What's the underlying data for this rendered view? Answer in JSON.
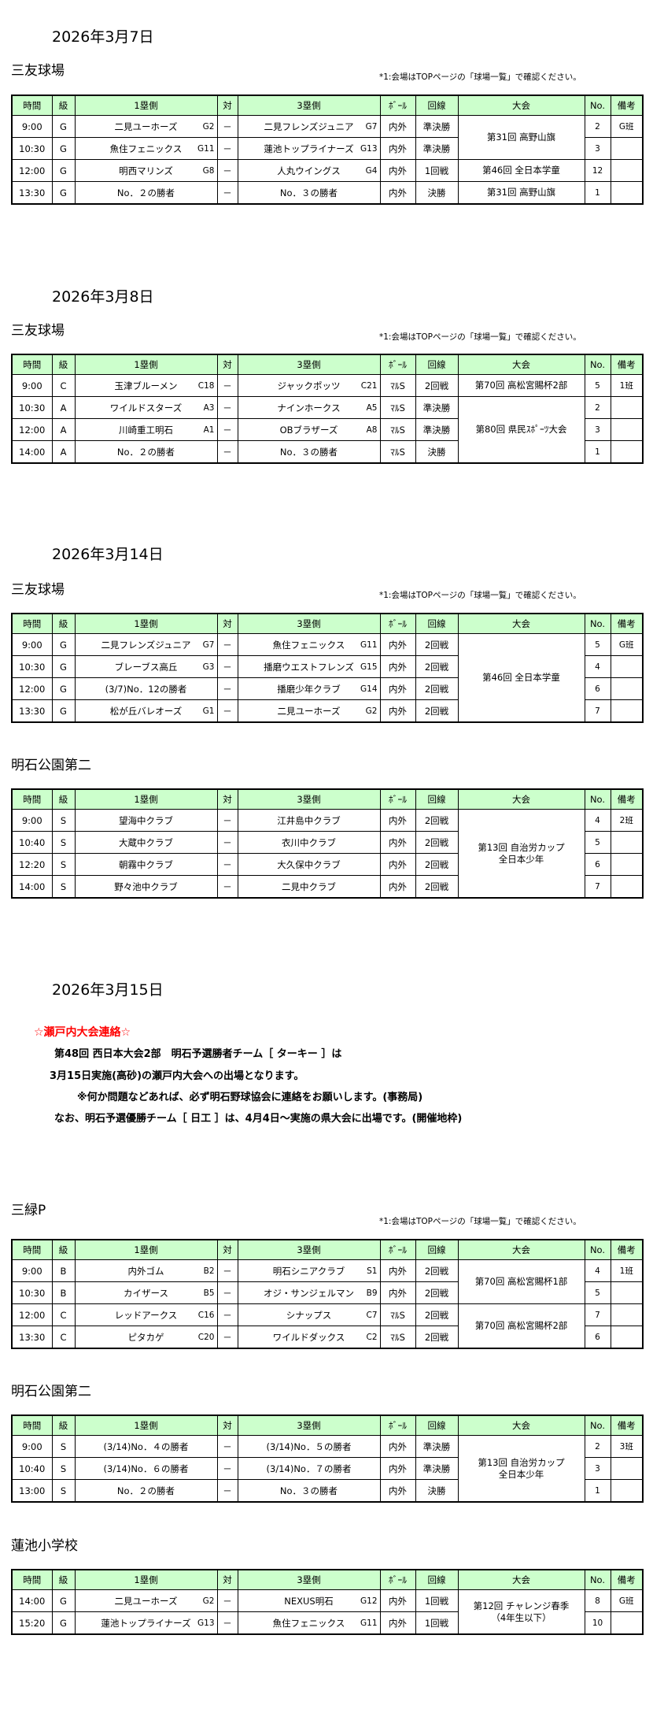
{
  "headers": [
    "時間",
    "級",
    "1塁側",
    "対",
    "3塁側",
    "ﾎﾞｰﾙ",
    "回線",
    "大会",
    "No.",
    "備考"
  ],
  "venue_note": "*1:会場はTOPページの「球場一覧」で確認ください。",
  "header_bg": "#ccffcc",
  "notice_color": "#ff0000",
  "dates": [
    "2026年3月7日",
    "2026年3月8日",
    "2026年3月14日",
    "2026年3月15日"
  ],
  "notice": {
    "title": "☆瀬戸内大会連絡☆",
    "lines": [
      "第48回 西日本大会2部　明石予選勝者チーム［ ターキー ］は",
      "3月15日実施(高砂)の瀬戸内大会への出場となります。",
      "※何か問題などあれば、必ず明石野球協会に連絡をお願いします。(事務局)",
      "なお、明石予選優勝チーム［ 日工 ］は、4月4日～実施の県大会に出場です。(開催地枠)"
    ]
  },
  "tables": [
    {
      "venue": "三友球場",
      "show_note": true,
      "rows": [
        {
          "time": "9:00",
          "cls": "G",
          "team1": "二見ユーホーズ",
          "code1": "G2",
          "vs": "－",
          "team3": "二見フレンズジュニア",
          "code3": "G7",
          "ball": "内外",
          "round": "準決勝",
          "no": "2",
          "remark": "G班"
        },
        {
          "time": "10:30",
          "cls": "G",
          "team1": "魚住フェニックス",
          "code1": "G11",
          "vs": "－",
          "team3": "蓮池トップライナーズ",
          "code3": "G13",
          "ball": "内外",
          "round": "準決勝",
          "no": "3",
          "remark": ""
        },
        {
          "time": "12:00",
          "cls": "G",
          "team1": "明西マリンズ",
          "code1": "G8",
          "vs": "－",
          "team3": "人丸ウイングス",
          "code3": "G4",
          "ball": "内外",
          "round": "1回戦",
          "no": "12",
          "remark": ""
        },
        {
          "time": "13:30",
          "cls": "G",
          "team1": "No．２の勝者",
          "code1": "",
          "vs": "－",
          "team3": "No．３の勝者",
          "code3": "",
          "ball": "内外",
          "round": "決勝",
          "no": "1",
          "remark": ""
        }
      ],
      "tournaments": [
        {
          "name": [
            "第31回 高野山旗"
          ],
          "span": 2
        },
        {
          "name": [
            "第46回 全日本学童"
          ],
          "span": 1
        },
        {
          "name": [
            "第31回 高野山旗"
          ],
          "span": 1
        }
      ]
    },
    {
      "venue": "三友球場",
      "show_note": true,
      "rows": [
        {
          "time": "9:00",
          "cls": "C",
          "team1": "玉津ブルーメン",
          "code1": "C18",
          "vs": "－",
          "team3": "ジャックポッツ",
          "code3": "C21",
          "ball": "ﾏﾙS",
          "round": "2回戦",
          "no": "5",
          "remark": "1班"
        },
        {
          "time": "10:30",
          "cls": "A",
          "team1": "ワイルドスターズ",
          "code1": "A3",
          "vs": "－",
          "team3": "ナインホークス",
          "code3": "A5",
          "ball": "ﾏﾙS",
          "round": "準決勝",
          "no": "2",
          "remark": ""
        },
        {
          "time": "12:00",
          "cls": "A",
          "team1": "川崎重工明石",
          "code1": "A1",
          "vs": "－",
          "team3": "OBブラザーズ",
          "code3": "A8",
          "ball": "ﾏﾙS",
          "round": "準決勝",
          "no": "3",
          "remark": ""
        },
        {
          "time": "14:00",
          "cls": "A",
          "team1": "No．２の勝者",
          "code1": "",
          "vs": "－",
          "team3": "No．３の勝者",
          "code3": "",
          "ball": "ﾏﾙS",
          "round": "決勝",
          "no": "1",
          "remark": ""
        }
      ],
      "tournaments": [
        {
          "name": [
            "第70回 高松宮賜杯2部"
          ],
          "span": 1
        },
        {
          "name": [
            "第80回 県民ｽﾎﾟｰﾂ大会"
          ],
          "span": 3
        }
      ]
    },
    {
      "venue": "三友球場",
      "show_note": true,
      "rows": [
        {
          "time": "9:00",
          "cls": "G",
          "team1": "二見フレンズジュニア",
          "code1": "G7",
          "vs": "－",
          "team3": "魚住フェニックス",
          "code3": "G11",
          "ball": "内外",
          "round": "2回戦",
          "no": "5",
          "remark": "G班"
        },
        {
          "time": "10:30",
          "cls": "G",
          "team1": "ブレーブス高丘",
          "code1": "G3",
          "vs": "－",
          "team3": "播磨ウエストフレンズ",
          "code3": "G15",
          "ball": "内外",
          "round": "2回戦",
          "no": "4",
          "remark": ""
        },
        {
          "time": "12:00",
          "cls": "G",
          "team1": "(3/7)No．12の勝者",
          "code1": "",
          "vs": "－",
          "team3": "播磨少年クラブ",
          "code3": "G14",
          "ball": "内外",
          "round": "2回戦",
          "no": "6",
          "remark": ""
        },
        {
          "time": "13:30",
          "cls": "G",
          "team1": "松が丘バレオーズ",
          "code1": "G1",
          "vs": "－",
          "team3": "二見ユーホーズ",
          "code3": "G2",
          "ball": "内外",
          "round": "2回戦",
          "no": "7",
          "remark": ""
        }
      ],
      "tournaments": [
        {
          "name": [
            "第46回 全日本学童"
          ],
          "span": 4
        }
      ]
    },
    {
      "venue": "明石公園第二",
      "show_note": false,
      "rows": [
        {
          "time": "9:00",
          "cls": "S",
          "team1": "望海中クラブ",
          "code1": "",
          "vs": "－",
          "team3": "江井島中クラブ",
          "code3": "",
          "ball": "内外",
          "round": "2回戦",
          "no": "4",
          "remark": "2班"
        },
        {
          "time": "10:40",
          "cls": "S",
          "team1": "大蔵中クラブ",
          "code1": "",
          "vs": "－",
          "team3": "衣川中クラブ",
          "code3": "",
          "ball": "内外",
          "round": "2回戦",
          "no": "5",
          "remark": ""
        },
        {
          "time": "12:20",
          "cls": "S",
          "team1": "朝霧中クラブ",
          "code1": "",
          "vs": "－",
          "team3": "大久保中クラブ",
          "code3": "",
          "ball": "内外",
          "round": "2回戦",
          "no": "6",
          "remark": ""
        },
        {
          "time": "14:00",
          "cls": "S",
          "team1": "野々池中クラブ",
          "code1": "",
          "vs": "－",
          "team3": "二見中クラブ",
          "code3": "",
          "ball": "内外",
          "round": "2回戦",
          "no": "7",
          "remark": ""
        }
      ],
      "tournaments": [
        {
          "name": [
            "第13回 自治労カップ",
            "全日本少年"
          ],
          "span": 4
        }
      ]
    },
    {
      "venue": "三緑P",
      "show_note": true,
      "rows": [
        {
          "time": "9:00",
          "cls": "B",
          "team1": "内外ゴム",
          "code1": "B2",
          "vs": "－",
          "team3": "明石シニアクラブ",
          "code3": "S1",
          "ball": "内外",
          "round": "2回戦",
          "no": "4",
          "remark": "1班"
        },
        {
          "time": "10:30",
          "cls": "B",
          "team1": "カイザース",
          "code1": "B5",
          "vs": "－",
          "team3": "オジ・サンジェルマン",
          "code3": "B9",
          "ball": "内外",
          "round": "2回戦",
          "no": "5",
          "remark": ""
        },
        {
          "time": "12:00",
          "cls": "C",
          "team1": "レッドアークス",
          "code1": "C16",
          "vs": "－",
          "team3": "シナップス",
          "code3": "C7",
          "ball": "ﾏﾙS",
          "round": "2回戦",
          "no": "7",
          "remark": ""
        },
        {
          "time": "13:30",
          "cls": "C",
          "team1": "ピタカゲ",
          "code1": "C20",
          "vs": "－",
          "team3": "ワイルドダックス",
          "code3": "C2",
          "ball": "ﾏﾙS",
          "round": "2回戦",
          "no": "6",
          "remark": ""
        }
      ],
      "tournaments": [
        {
          "name": [
            "第70回 高松宮賜杯1部"
          ],
          "span": 2
        },
        {
          "name": [
            "第70回 高松宮賜杯2部"
          ],
          "span": 2
        }
      ]
    },
    {
      "venue": "明石公園第二",
      "show_note": false,
      "rows": [
        {
          "time": "9:00",
          "cls": "S",
          "team1": "(3/14)No．４の勝者",
          "code1": "",
          "vs": "－",
          "team3": "(3/14)No．５の勝者",
          "code3": "",
          "ball": "内外",
          "round": "準決勝",
          "no": "2",
          "remark": "3班"
        },
        {
          "time": "10:40",
          "cls": "S",
          "team1": "(3/14)No．６の勝者",
          "code1": "",
          "vs": "－",
          "team3": "(3/14)No．７の勝者",
          "code3": "",
          "ball": "内外",
          "round": "準決勝",
          "no": "3",
          "remark": ""
        },
        {
          "time": "13:00",
          "cls": "S",
          "team1": "No．２の勝者",
          "code1": "",
          "vs": "－",
          "team3": "No．３の勝者",
          "code3": "",
          "ball": "内外",
          "round": "決勝",
          "no": "1",
          "remark": ""
        }
      ],
      "tournaments": [
        {
          "name": [
            "第13回 自治労カップ",
            "全日本少年"
          ],
          "span": 3
        }
      ]
    },
    {
      "venue": "蓮池小学校",
      "show_note": false,
      "rows": [
        {
          "time": "14:00",
          "cls": "G",
          "team1": "二見ユーホーズ",
          "code1": "G2",
          "vs": "－",
          "team3": "NEXUS明石",
          "code3": "G12",
          "ball": "内外",
          "round": "1回戦",
          "no": "8",
          "remark": "G班"
        },
        {
          "time": "15:20",
          "cls": "G",
          "team1": "蓮池トップライナーズ",
          "code1": "G13",
          "vs": "－",
          "team3": "魚住フェニックス",
          "code3": "G11",
          "ball": "内外",
          "round": "1回戦",
          "no": "10",
          "remark": ""
        }
      ],
      "tournaments": [
        {
          "name": [
            "第12回 チャレンジ春季",
            "（4年生以下）"
          ],
          "span": 2
        }
      ]
    }
  ]
}
